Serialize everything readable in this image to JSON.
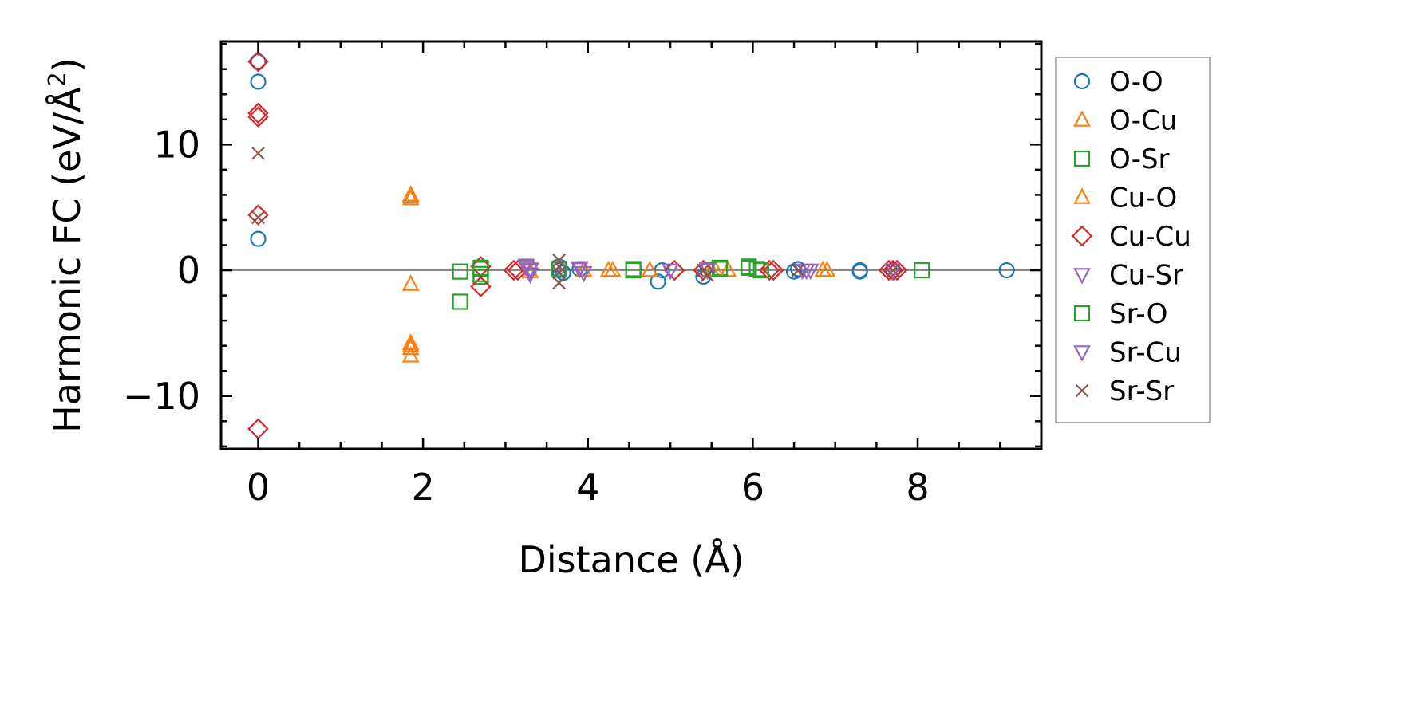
{
  "chart_data": {
    "type": "scatter",
    "title": "",
    "xlabel": "Distance (Å)",
    "ylabel": "Harmonic FC (eV/Å²)",
    "ylabel_base": "Harmonic FC (eV/Å",
    "ylabel_sup": "2",
    "ylabel_tail": ")",
    "xlim": [
      -0.45,
      9.5
    ],
    "ylim": [
      -14.2,
      18.2
    ],
    "x_ticks": [
      0,
      2,
      4,
      6,
      8
    ],
    "x_tick_labels": [
      "0",
      "2",
      "4",
      "6",
      "8"
    ],
    "y_ticks": [
      -10,
      0,
      10
    ],
    "y_tick_labels": [
      "−10",
      "0",
      "10"
    ],
    "grid": false,
    "zero_line": true,
    "legend_position": "outside-right",
    "series": [
      {
        "name": "O-O",
        "marker": "circle",
        "color": "#1f77b4",
        "points": [
          [
            0,
            16.6
          ],
          [
            0,
            15.0
          ],
          [
            0,
            2.5
          ],
          [
            3.65,
            0.3
          ],
          [
            3.65,
            0
          ],
          [
            3.7,
            -0.2
          ],
          [
            3.9,
            0.1
          ],
          [
            4.85,
            -0.9
          ],
          [
            4.9,
            0
          ],
          [
            5.4,
            -0.5
          ],
          [
            5.45,
            0
          ],
          [
            6.5,
            -0.1
          ],
          [
            6.55,
            0.1
          ],
          [
            7.3,
            0
          ],
          [
            7.3,
            -0.1
          ],
          [
            7.7,
            0
          ],
          [
            9.08,
            0
          ]
        ]
      },
      {
        "name": "O-Cu",
        "marker": "triangle-up",
        "color": "#ff7f0e",
        "points": [
          [
            1.85,
            6.0
          ],
          [
            1.85,
            5.7
          ],
          [
            1.85,
            -1.1
          ],
          [
            1.85,
            -5.8
          ],
          [
            1.85,
            -6.2
          ],
          [
            1.85,
            -6.8
          ],
          [
            3.3,
            -0.1
          ],
          [
            3.95,
            0
          ],
          [
            4.25,
            0
          ],
          [
            4.75,
            0
          ],
          [
            5.5,
            0
          ],
          [
            5.7,
            0
          ],
          [
            6.85,
            0
          ]
        ]
      },
      {
        "name": "O-Sr",
        "marker": "square",
        "color": "#2ca02c",
        "points": [
          [
            2.45,
            -0.1
          ],
          [
            2.45,
            -2.5
          ],
          [
            2.7,
            0.1
          ],
          [
            2.7,
            -0.5
          ],
          [
            3.65,
            0.1
          ],
          [
            4.55,
            0
          ],
          [
            5.6,
            0.2
          ],
          [
            5.95,
            0.2
          ],
          [
            6.05,
            0.1
          ],
          [
            8.05,
            0
          ]
        ]
      },
      {
        "name": "Cu-O",
        "marker": "triangle-up",
        "color": "#ff7f0e",
        "points": [
          [
            1.85,
            5.9
          ],
          [
            1.85,
            -6.0
          ],
          [
            3.95,
            0
          ],
          [
            4.3,
            0
          ],
          [
            5.55,
            0
          ],
          [
            6.9,
            0
          ]
        ]
      },
      {
        "name": "Cu-Cu",
        "marker": "diamond",
        "color": "#d62728",
        "points": [
          [
            0,
            16.6
          ],
          [
            0,
            12.5
          ],
          [
            0,
            12.2
          ],
          [
            0,
            4.4
          ],
          [
            0,
            -12.6
          ],
          [
            2.7,
            0.3
          ],
          [
            2.7,
            -1.3
          ],
          [
            3.1,
            0
          ],
          [
            3.15,
            0
          ],
          [
            5.05,
            0
          ],
          [
            5.4,
            0
          ],
          [
            6.2,
            0
          ],
          [
            6.25,
            0
          ],
          [
            7.65,
            0
          ],
          [
            7.7,
            0
          ],
          [
            7.75,
            0
          ]
        ]
      },
      {
        "name": "Cu-Sr",
        "marker": "triangle-down",
        "color": "#9467bd",
        "points": [
          [
            3.25,
            0.4
          ],
          [
            3.3,
            0
          ],
          [
            3.3,
            -0.3
          ],
          [
            3.9,
            0.2
          ],
          [
            3.95,
            -0.2
          ],
          [
            5.0,
            0
          ],
          [
            5.45,
            0.1
          ],
          [
            6.6,
            0
          ],
          [
            6.7,
            0
          ],
          [
            7.7,
            0
          ]
        ]
      },
      {
        "name": "Sr-O",
        "marker": "square",
        "color": "#2ca02c",
        "points": [
          [
            2.7,
            0.2
          ],
          [
            2.7,
            -0.3
          ],
          [
            4.55,
            0.1
          ],
          [
            5.6,
            0.1
          ],
          [
            5.95,
            0.3
          ],
          [
            6.1,
            0
          ]
        ]
      },
      {
        "name": "Sr-Cu",
        "marker": "triangle-down",
        "color": "#9467bd",
        "points": [
          [
            3.25,
            0.3
          ],
          [
            3.3,
            0.1
          ],
          [
            3.9,
            0.1
          ],
          [
            5.0,
            0
          ],
          [
            5.45,
            0
          ],
          [
            6.65,
            0
          ]
        ]
      },
      {
        "name": "Sr-Sr",
        "marker": "x",
        "color": "#8c564b",
        "points": [
          [
            0,
            9.3
          ],
          [
            0,
            4.2
          ],
          [
            3.65,
            0.8
          ],
          [
            3.65,
            0.3
          ],
          [
            3.65,
            -0.2
          ],
          [
            3.65,
            -1.0
          ],
          [
            5.4,
            0
          ],
          [
            5.45,
            -0.4
          ],
          [
            6.55,
            0
          ],
          [
            7.7,
            0
          ]
        ]
      }
    ]
  }
}
